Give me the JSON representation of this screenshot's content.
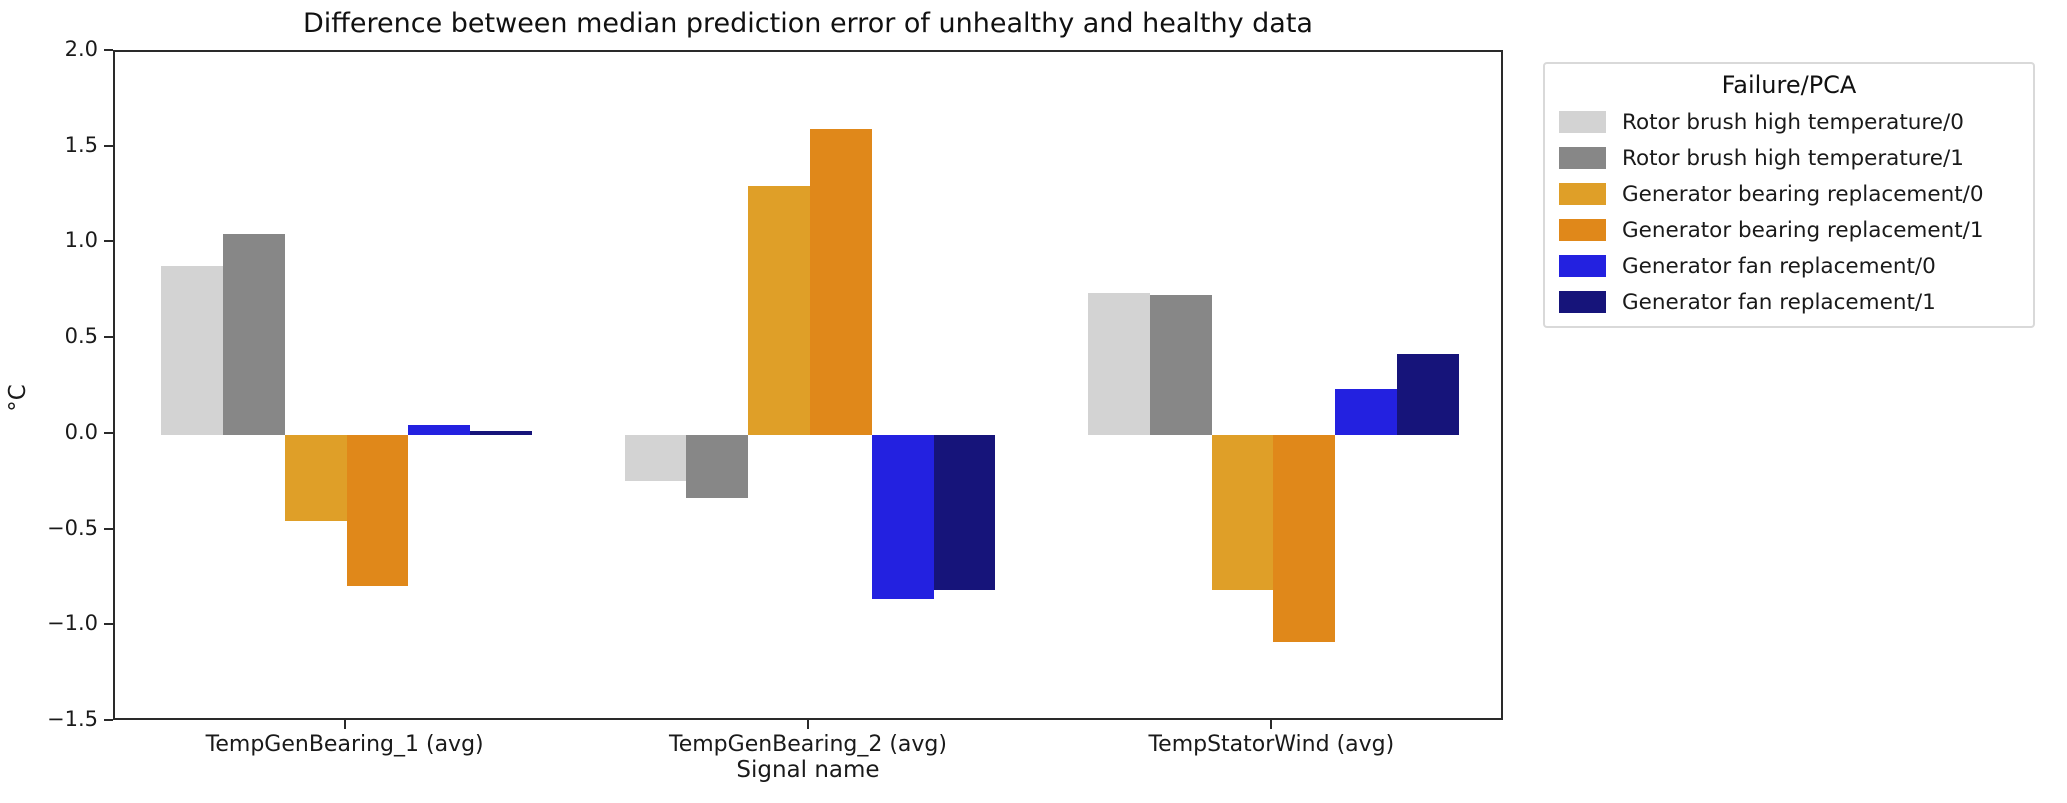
{
  "chart_data": {
    "type": "bar",
    "title": "Difference between median prediction error of unhealthy and healthy data",
    "xlabel": "Signal name",
    "ylabel": "°C",
    "ylim": [
      -1.5,
      2.0
    ],
    "yticks": [
      2.0,
      1.5,
      1.0,
      0.5,
      0.0,
      -0.5,
      -1.0,
      -1.5
    ],
    "grid": false,
    "categories": [
      "TempGenBearing_1 (avg)",
      "TempGenBearing_2 (avg)",
      "TempStatorWind (avg)"
    ],
    "legend": {
      "title": "Failure/PCA",
      "position": "outside upper right"
    },
    "series": [
      {
        "name": "Rotor brush high temperature/0",
        "color": "#d3d3d3",
        "values": [
          0.88,
          -0.24,
          0.74
        ]
      },
      {
        "name": "Rotor brush high temperature/1",
        "color": "#878787",
        "values": [
          1.05,
          -0.33,
          0.73
        ]
      },
      {
        "name": "Generator bearing replacement/0",
        "color": "#df9f28",
        "values": [
          -0.45,
          1.3,
          -0.81
        ]
      },
      {
        "name": "Generator bearing replacement/1",
        "color": "#e0881a",
        "values": [
          -0.79,
          1.6,
          -1.08
        ]
      },
      {
        "name": "Generator fan replacement/0",
        "color": "#2321e0",
        "values": [
          0.05,
          -0.86,
          0.24
        ]
      },
      {
        "name": "Generator fan replacement/1",
        "color": "#16147a",
        "values": [
          0.02,
          -0.81,
          0.42
        ]
      }
    ]
  }
}
